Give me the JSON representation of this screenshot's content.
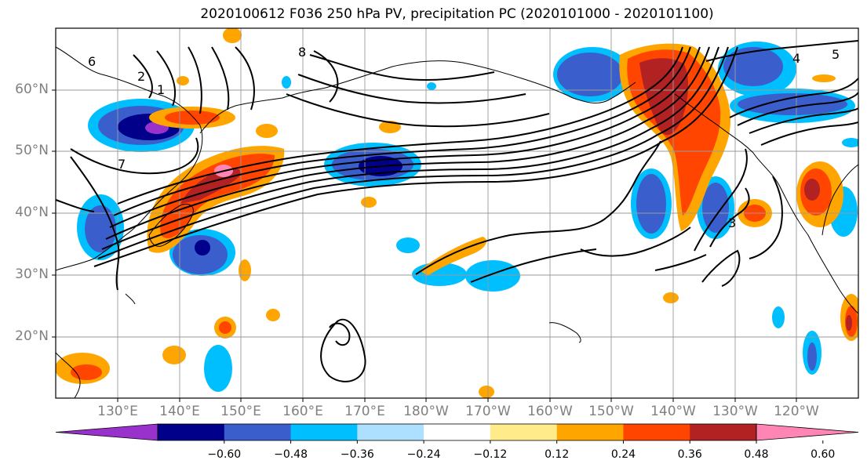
{
  "title": "2020100612 F036 250 hPa PV, precipitation PC (2020101000 - 2020101100)",
  "latitude_labels": [
    "60°N",
    "50°N",
    "40°N",
    "30°N",
    "20°N"
  ],
  "longitude_labels": [
    "130°E",
    "140°E",
    "150°E",
    "160°E",
    "170°E",
    "180°W",
    "170°W",
    "160°W",
    "150°W",
    "140°W",
    "130°W",
    "120°W"
  ],
  "colorbar": {
    "tick_labels": [
      "−0.60",
      "−0.48",
      "−0.36",
      "−0.24",
      "−0.12",
      "0.12",
      "0.24",
      "0.36",
      "0.48",
      "0.60"
    ],
    "colors": [
      "#9932CC",
      "#00008B",
      "#3A5FCD",
      "#00BFFF",
      "#ADDFFF",
      "#FFFFFF",
      "#FFEB8A",
      "#FFA500",
      "#FF4500",
      "#B22222",
      "#FF86B4"
    ]
  },
  "contour_labels": [
    "1",
    "2",
    "3",
    "4",
    "5",
    "6",
    "7",
    "8"
  ],
  "colors": {
    "grid": "#9a9a9a",
    "contour": "#000000",
    "coast": "#000000"
  }
}
